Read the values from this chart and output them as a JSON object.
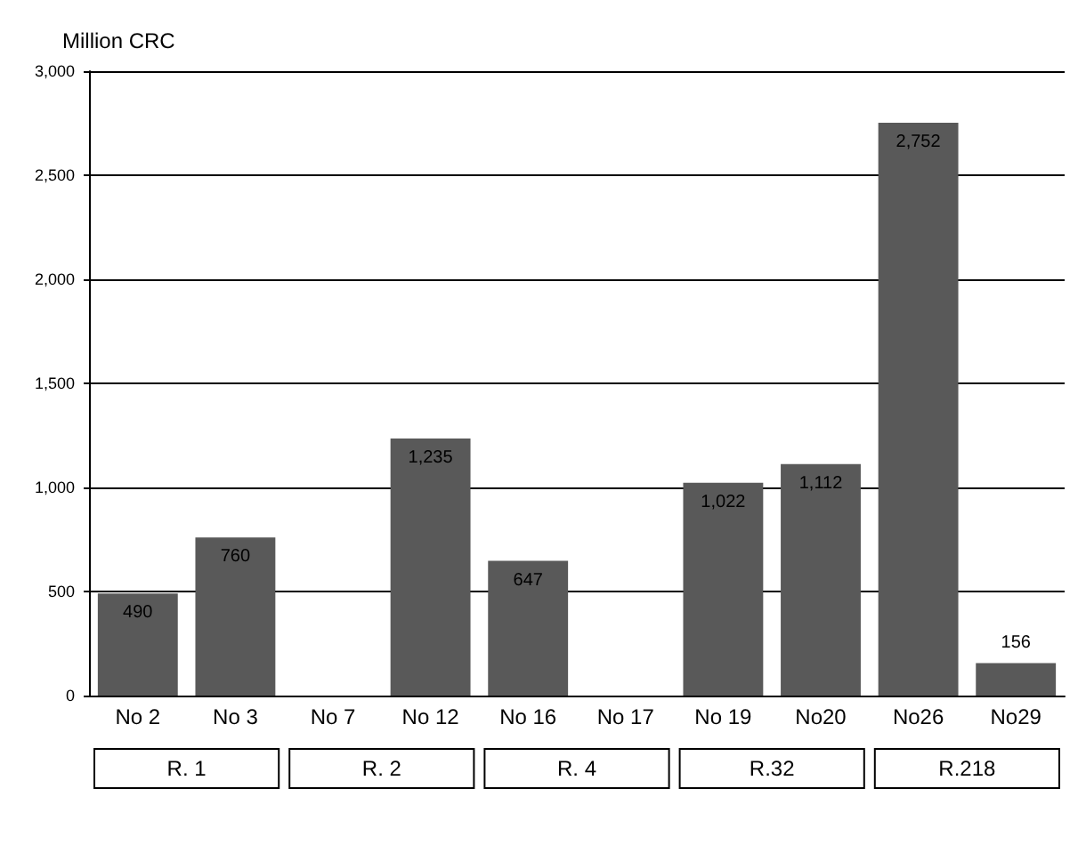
{
  "chart_data": {
    "type": "bar",
    "ylabel": "Million CRC",
    "categories": [
      "No 2",
      "No 3",
      "No 7",
      "No 12",
      "No 16",
      "No 17",
      "No 19",
      "No20",
      "No26",
      "No29"
    ],
    "values": [
      490,
      760,
      null,
      1235,
      647,
      null,
      1022,
      1112,
      2752,
      156
    ],
    "color": "#595959",
    "ylim": [
      0,
      3000
    ],
    "yticks": [
      {
        "value": 0,
        "label": "0"
      },
      {
        "value": 500,
        "label": "500"
      },
      {
        "value": 1000,
        "label": "1,000"
      },
      {
        "value": 1500,
        "label": "1,500"
      },
      {
        "value": 2000,
        "label": "2,000"
      },
      {
        "value": 2500,
        "label": "2,500"
      },
      {
        "value": 3000,
        "label": "3,000"
      }
    ],
    "grid": "y",
    "value_labels": [
      "490",
      "760",
      null,
      "1,235",
      "647",
      null,
      "1,022",
      "1,112",
      "2,752",
      "156"
    ],
    "annotations": [
      "R. 1",
      "R. 2",
      "R. 4",
      "R.32",
      "R.218"
    ]
  }
}
